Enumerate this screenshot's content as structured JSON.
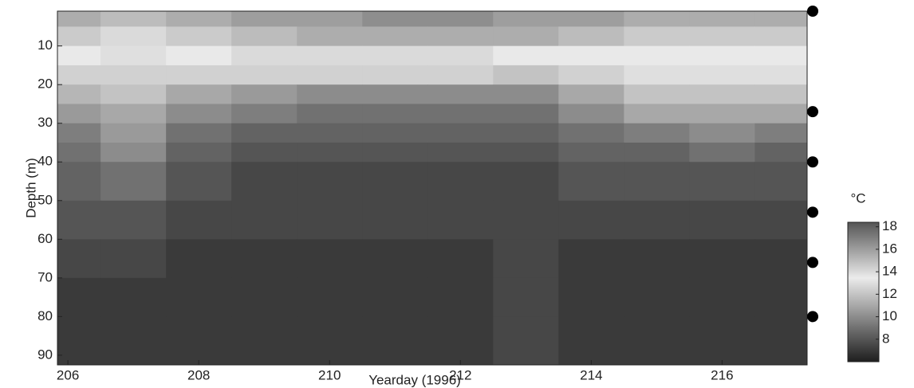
{
  "chart_data": {
    "type": "heatmap",
    "x_label": "Yearday (1996)",
    "y_label": "Depth (m)",
    "colorbar_label": "°C",
    "xlim": [
      205.84,
      217.3
    ],
    "ylim": [
      1,
      92.5
    ],
    "y_inverted": true,
    "xticks": [
      206,
      208,
      210,
      212,
      214,
      216
    ],
    "yticks": [
      10,
      20,
      30,
      40,
      50,
      60,
      70,
      80,
      90
    ],
    "clim": [
      6,
      18.4
    ],
    "cticks": [
      8,
      10,
      12,
      14,
      16,
      18
    ],
    "xbins": [
      205.84,
      206.5,
      207.5,
      208.5,
      209.5,
      210.5,
      211.5,
      212.5,
      213.5,
      214.5,
      215.5,
      216.5,
      217.3
    ],
    "ybins": [
      1,
      5,
      10,
      15,
      20,
      25,
      30,
      35,
      40,
      50,
      60,
      70,
      80,
      92.5
    ],
    "z": [
      [
        15.5,
        15,
        15.5,
        16,
        16,
        16.5,
        16.5,
        16,
        16,
        15.5,
        15.5,
        15.5
      ],
      [
        14.5,
        14,
        14.5,
        15,
        15.5,
        15.5,
        15.5,
        15.5,
        15,
        14.5,
        14.5,
        14.5
      ],
      [
        13.5,
        13,
        13.5,
        14,
        14,
        14,
        14,
        13.5,
        13.5,
        13.5,
        13.5,
        13.5
      ],
      [
        12.5,
        12.5,
        12.5,
        12.5,
        12.5,
        12.5,
        12.5,
        12,
        12.5,
        13,
        13,
        13
      ],
      [
        11.5,
        12,
        11,
        10.5,
        10,
        10,
        10,
        10,
        11,
        12,
        12,
        12
      ],
      [
        10.5,
        11,
        10,
        9.5,
        9,
        9,
        9,
        9,
        10,
        11,
        11,
        11
      ],
      [
        9.5,
        10.5,
        9,
        8.5,
        8.5,
        8.5,
        8.5,
        8.5,
        9,
        9.5,
        10,
        9.5
      ],
      [
        9,
        10,
        8.5,
        8,
        8,
        8,
        8,
        8,
        8.5,
        8.5,
        9,
        8.5
      ],
      [
        8.5,
        9,
        8,
        7.5,
        7.5,
        7.5,
        7.5,
        7.5,
        8,
        8,
        8,
        8
      ],
      [
        8,
        8,
        7.5,
        7.5,
        7.5,
        7.5,
        7.5,
        7.5,
        7.5,
        7.5,
        7.5,
        7.5
      ],
      [
        7.5,
        7.5,
        7,
        7,
        7,
        7,
        7,
        7.5,
        7,
        7,
        7,
        7
      ],
      [
        7,
        7,
        7,
        7,
        7,
        7,
        7,
        7.5,
        7,
        7,
        7,
        7
      ],
      [
        7,
        7,
        7,
        7,
        7,
        7,
        7,
        7.5,
        7,
        7,
        7,
        7
      ]
    ],
    "sensor_depths": [
      1,
      27,
      40,
      53,
      66,
      80
    ],
    "sensor_color": "#000000"
  }
}
